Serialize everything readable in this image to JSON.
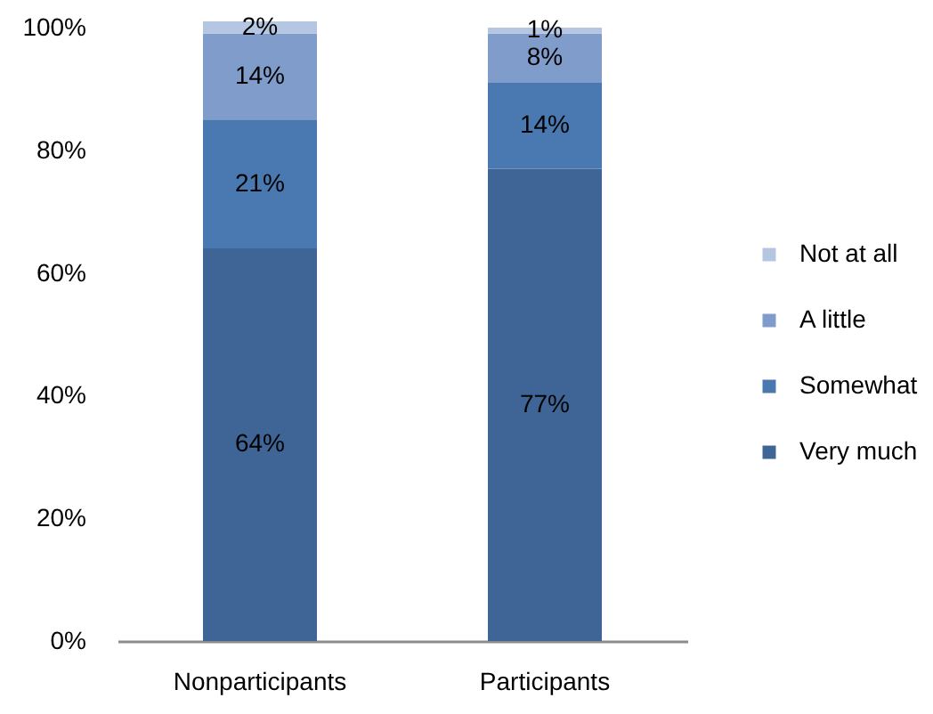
{
  "chart_data": {
    "type": "bar",
    "categories": [
      "Nonparticipants",
      "Participants"
    ],
    "stacked": true,
    "series": [
      {
        "name": "Very much",
        "color": "#3e6595",
        "values": [
          64,
          77
        ],
        "value_labels": [
          "64%",
          "77%"
        ]
      },
      {
        "name": "Somewhat",
        "color": "#4a78b0",
        "values": [
          21,
          14
        ],
        "value_labels": [
          "21%",
          "14%"
        ]
      },
      {
        "name": "A little",
        "color": "#7f9ccb",
        "values": [
          14,
          8
        ],
        "value_labels": [
          "14%",
          "8%"
        ]
      },
      {
        "name": "Not at all",
        "color": "#b4c6e2",
        "values": [
          2,
          1
        ],
        "value_labels": [
          "2%",
          "1%"
        ]
      }
    ],
    "ylim": [
      0,
      101
    ],
    "yticks": [
      {
        "value": 0,
        "label": "0%"
      },
      {
        "value": 20,
        "label": "20%"
      },
      {
        "value": 40,
        "label": "40%"
      },
      {
        "value": 60,
        "label": "60%"
      },
      {
        "value": 80,
        "label": "80%"
      },
      {
        "value": 100,
        "label": "100%"
      }
    ],
    "legend": "right"
  }
}
